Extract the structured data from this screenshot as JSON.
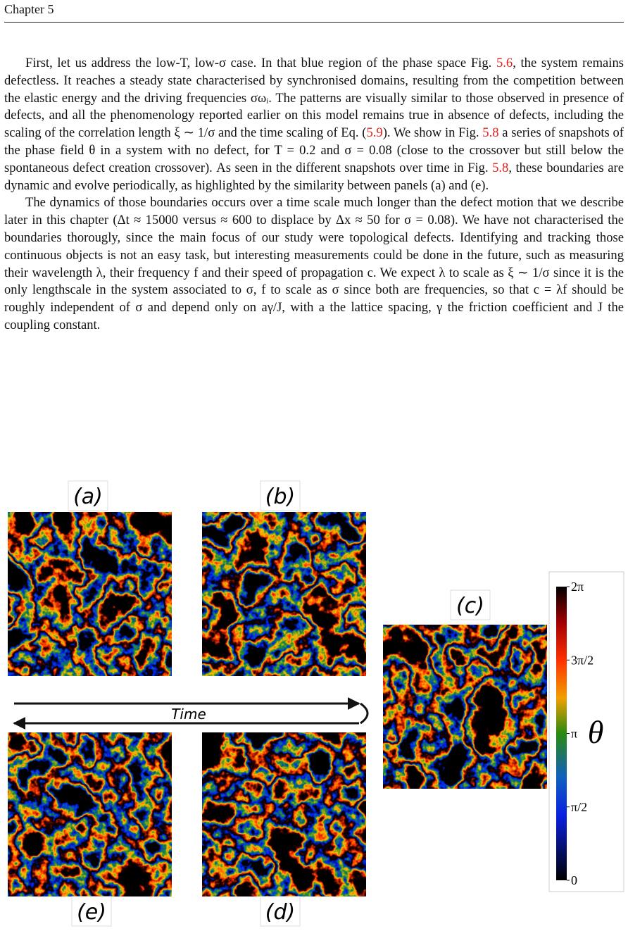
{
  "header": {
    "chapter": "Chapter 5"
  },
  "paragraphs": [
    [
      "First, let us address the low-T, low-σ case. In that blue region of the phase space Fig. ",
      "5.6",
      ", the system remains defectless. It reaches a steady state characterised by synchronised domains, resulting from the competition between the elastic energy and the driving frequencies σωᵢ. The patterns are visually similar to those observed in presence of defects, and all the phenomenology reported earlier on this model remains true in absence of defects, including the scaling of the correlation length ξ ∼ 1/σ and the time scaling of Eq. (",
      "5.9",
      "). We show in Fig. ",
      "5.8",
      " a series of snapshots of the phase field θ in a system with no defect, for T = 0.2 and σ = 0.08 (close to the crossover but still below the spontaneous defect creation crossover). As seen in the different snapshots over time in Fig. ",
      "5.8",
      ", these boundaries are dynamic and evolve periodically, as highlighted by the similarity between panels (a) and (e)."
    ],
    [
      "The dynamics of those boundaries occurs over a time scale much longer than the defect motion that we describe later in this chapter (Δt ≈ 15000 versus ≈ 600 to displace by Δx ≈ 50 for σ = 0.08). We have not characterised the boundaries thorougly, since the main focus of our study were topological defects. Identifying and tracking those continuous objects is not an easy task, but interesting measurements could be done in the future, such as measuring their wavelength λ, their frequency f and their speed of propagation c. We expect λ to scale as ξ ∼ 1/σ since it is the only lengthscale in the system associated to σ, f to scale as σ since both are frequencies, so that c = λf should be roughly independent of σ and depend only on aγ/J, with a the lattice spacing, γ the friction coefficient and J the coupling constant."
    ]
  ],
  "figure": {
    "panel_labels": [
      "(a)",
      "(b)",
      "(c)",
      "(d)",
      "(e)"
    ],
    "arrow_label": "Time",
    "colorbar": {
      "tick_labels": [
        "2π",
        "3π/2",
        "π",
        "π/2",
        "0"
      ],
      "label": "θ"
    }
  }
}
